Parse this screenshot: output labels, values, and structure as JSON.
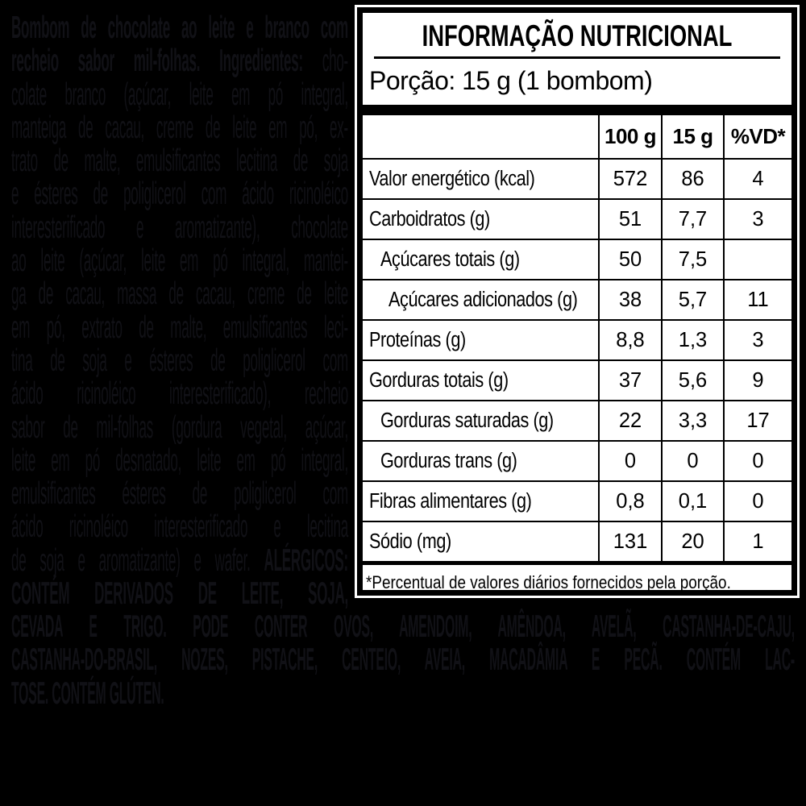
{
  "colors": {
    "background": "#000000",
    "faint_ingredient_text": "#111116",
    "label_background": "#ffffff",
    "label_text": "#000000"
  },
  "ingredients": {
    "left_lines": [
      {
        "segments": [
          {
            "t": "Bombom de chocolate ao leite e branco com",
            "b": true
          }
        ]
      },
      {
        "segments": [
          {
            "t": "recheio sabor mil-folhas. Ingredientes:",
            "b": true
          },
          {
            "t": " cho-",
            "b": false
          }
        ]
      },
      {
        "segments": [
          {
            "t": "colate branco (açúcar, leite em pó integral,",
            "b": false
          }
        ]
      },
      {
        "segments": [
          {
            "t": "manteiga de cacau, creme de leite em pó, ex-",
            "b": false
          }
        ]
      },
      {
        "segments": [
          {
            "t": "trato de malte, emulsificantes lecitina de soja",
            "b": false
          }
        ]
      },
      {
        "segments": [
          {
            "t": "e ésteres de poliglicerol com ácido ricinoléico",
            "b": false
          }
        ]
      },
      {
        "segments": [
          {
            "t": "interesterificado e aromatizante), chocolate",
            "b": false
          }
        ]
      },
      {
        "segments": [
          {
            "t": "ao leite (açúcar, leite em pó integral, mantei-",
            "b": false
          }
        ]
      },
      {
        "segments": [
          {
            "t": "ga de cacau, massa de cacau, creme de leite",
            "b": false
          }
        ]
      },
      {
        "segments": [
          {
            "t": "em pó, extrato de malte, emulsificantes leci-",
            "b": false
          }
        ]
      },
      {
        "segments": [
          {
            "t": "tina de soja e ésteres de poliglicerol com",
            "b": false
          }
        ]
      },
      {
        "segments": [
          {
            "t": "ácido ricinoléico interesterificado), recheio",
            "b": false
          }
        ]
      },
      {
        "segments": [
          {
            "t": "sabor de mil-folhas (gordura vegetal, açúcar,",
            "b": false
          }
        ]
      },
      {
        "segments": [
          {
            "t": "leite em pó desnatado, leite em pó integral,",
            "b": false
          }
        ]
      },
      {
        "segments": [
          {
            "t": "emulsificantes ésteres de poliglicerol com",
            "b": false
          }
        ]
      },
      {
        "segments": [
          {
            "t": "ácido ricinoléico interesterificado e lecitina",
            "b": false
          }
        ]
      },
      {
        "segments": [
          {
            "t": "de soja e aromatizante) e wafer. ",
            "b": false
          },
          {
            "t": "ALÉRGICOS:",
            "b": true
          }
        ]
      },
      {
        "segments": [
          {
            "t": "CONTÉM DERIVADOS DE LEITE, SOJA,",
            "b": true
          }
        ]
      }
    ],
    "bottom_lines": [
      {
        "segments": [
          {
            "t": "CEVADA E TRIGO. PODE CONTER OVOS, AMENDOIM, AMÊNDOA, AVELÃ, CASTANHA-DE-CAJU,",
            "b": true
          }
        ]
      },
      {
        "segments": [
          {
            "t": "CASTANHA-DO-BRASIL, NOZES, PISTACHE, CENTEIO, AVEIA, MACADÂMIA E PECÃ. CONTÉM LAC-",
            "b": true
          }
        ]
      },
      {
        "segments": [
          {
            "t": "TOSE. CONTÉM GLÚTEN.",
            "b": true
          }
        ],
        "justify": false
      }
    ]
  },
  "nutrition_label": {
    "title": "INFORMAÇÃO NUTRICIONAL",
    "serving": "Porção: 15 g (1 bombom)",
    "columns": [
      "100 g",
      "15 g",
      "%VD*"
    ],
    "rows": [
      {
        "label": "Valor energético (kcal)",
        "indent": 0,
        "per100g": "572",
        "per15g": "86",
        "vd": "4"
      },
      {
        "label": "Carboidratos (g)",
        "indent": 0,
        "per100g": "51",
        "per15g": "7,7",
        "vd": "3"
      },
      {
        "label": "Açúcares totais (g)",
        "indent": 1,
        "per100g": "50",
        "per15g": "7,5",
        "vd": ""
      },
      {
        "label": "Açúcares adicionados (g)",
        "indent": 2,
        "per100g": "38",
        "per15g": "5,7",
        "vd": "11"
      },
      {
        "label": "Proteínas (g)",
        "indent": 0,
        "per100g": "8,8",
        "per15g": "1,3",
        "vd": "3"
      },
      {
        "label": "Gorduras totais (g)",
        "indent": 0,
        "per100g": "37",
        "per15g": "5,6",
        "vd": "9"
      },
      {
        "label": "Gorduras saturadas (g)",
        "indent": 1,
        "per100g": "22",
        "per15g": "3,3",
        "vd": "17"
      },
      {
        "label": "Gorduras trans (g)",
        "indent": 1,
        "per100g": "0",
        "per15g": "0",
        "vd": "0"
      },
      {
        "label": "Fibras alimentares (g)",
        "indent": 0,
        "per100g": "0,8",
        "per15g": "0,1",
        "vd": "0"
      },
      {
        "label": "Sódio (mg)",
        "indent": 0,
        "per100g": "131",
        "per15g": "20",
        "vd": "1"
      }
    ],
    "footnote": "*Percentual de valores diários fornecidos pela porção."
  }
}
